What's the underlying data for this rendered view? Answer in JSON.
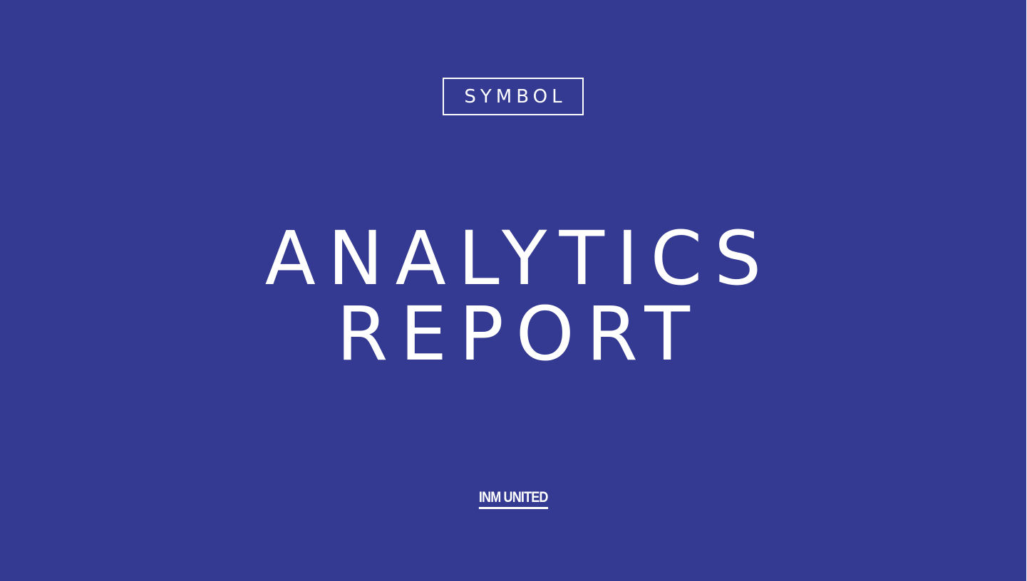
{
  "colors": {
    "background": "#343a91",
    "text": "#ffffff"
  },
  "logo": {
    "name": "SYMBOL"
  },
  "title": {
    "line1": "ANALYTICS",
    "line2": "REPORT"
  },
  "footer_logo": {
    "name": "INM UNITED"
  }
}
